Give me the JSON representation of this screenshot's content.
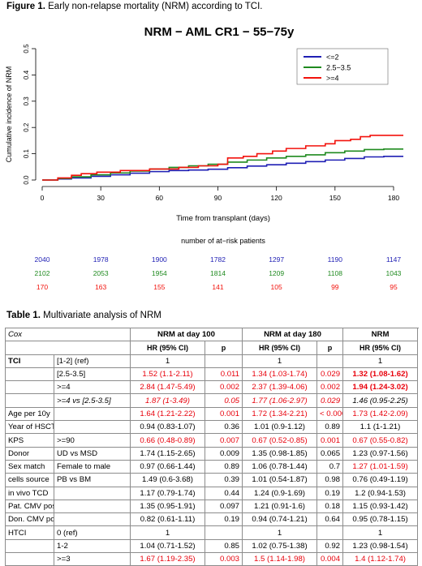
{
  "figure_caption": {
    "label": "Figure 1.",
    "text": " Early non-relapse mortality (NRM) according to TCI."
  },
  "table_caption": {
    "label": "Table 1.",
    "text": " Multivariate analysis of NRM"
  },
  "chart_data": {
    "type": "line",
    "title": "NRM − AML CR1 − 55−75y",
    "xlabel": "Time from transplant (days)",
    "ylabel": "Cumulative incidence of NRM",
    "xlim": [
      0,
      185
    ],
    "ylim": [
      0,
      0.5
    ],
    "x_ticks": [
      0,
      30,
      60,
      90,
      120,
      150,
      180
    ],
    "y_ticks": [
      "0.0",
      "0.1",
      "0.2",
      "0.3",
      "0.4",
      "0.5"
    ],
    "legend_position": "top-right",
    "series": [
      {
        "name": "<=2",
        "color": "#1f1fb4",
        "points": [
          [
            0,
            0
          ],
          [
            8,
            0.004
          ],
          [
            15,
            0.008
          ],
          [
            25,
            0.014
          ],
          [
            35,
            0.02
          ],
          [
            45,
            0.026
          ],
          [
            55,
            0.032
          ],
          [
            65,
            0.036
          ],
          [
            75,
            0.038
          ],
          [
            85,
            0.041
          ],
          [
            95,
            0.047
          ],
          [
            105,
            0.053
          ],
          [
            115,
            0.058
          ],
          [
            125,
            0.064
          ],
          [
            135,
            0.07
          ],
          [
            145,
            0.076
          ],
          [
            155,
            0.082
          ],
          [
            165,
            0.088
          ],
          [
            175,
            0.09
          ],
          [
            185,
            0.09
          ]
        ]
      },
      {
        "name": "2.5−3.5",
        "color": "#1f8a1f",
        "points": [
          [
            0,
            0
          ],
          [
            8,
            0.006
          ],
          [
            15,
            0.012
          ],
          [
            25,
            0.02
          ],
          [
            35,
            0.027
          ],
          [
            45,
            0.034
          ],
          [
            55,
            0.042
          ],
          [
            65,
            0.048
          ],
          [
            75,
            0.054
          ],
          [
            85,
            0.06
          ],
          [
            95,
            0.068
          ],
          [
            105,
            0.076
          ],
          [
            115,
            0.084
          ],
          [
            125,
            0.09
          ],
          [
            135,
            0.096
          ],
          [
            145,
            0.104
          ],
          [
            155,
            0.11
          ],
          [
            165,
            0.116
          ],
          [
            175,
            0.118
          ],
          [
            185,
            0.118
          ]
        ]
      },
      {
        "name": ">=4",
        "color": "#f2120c",
        "points": [
          [
            0,
            0
          ],
          [
            8,
            0.008
          ],
          [
            15,
            0.018
          ],
          [
            20,
            0.024
          ],
          [
            28,
            0.03
          ],
          [
            35,
            0.03
          ],
          [
            40,
            0.036
          ],
          [
            50,
            0.036
          ],
          [
            55,
            0.042
          ],
          [
            65,
            0.042
          ],
          [
            70,
            0.048
          ],
          [
            78,
            0.048
          ],
          [
            80,
            0.054
          ],
          [
            90,
            0.06
          ],
          [
            95,
            0.084
          ],
          [
            103,
            0.09
          ],
          [
            110,
            0.1
          ],
          [
            118,
            0.11
          ],
          [
            125,
            0.12
          ],
          [
            135,
            0.13
          ],
          [
            145,
            0.138
          ],
          [
            150,
            0.15
          ],
          [
            158,
            0.155
          ],
          [
            163,
            0.165
          ],
          [
            168,
            0.17
          ],
          [
            185,
            0.17
          ]
        ]
      }
    ],
    "at_risk": {
      "title": "number of at−risk patients",
      "days": [
        0,
        30,
        60,
        90,
        120,
        150,
        180
      ],
      "rows": [
        {
          "color": "#1f1fb4",
          "values": [
            "2040",
            "1978",
            "1900",
            "1782",
            "1297",
            "1190",
            "1147"
          ]
        },
        {
          "color": "#1f8a1f",
          "values": [
            "2102",
            "2053",
            "1954",
            "1814",
            "1209",
            "1108",
            "1043"
          ]
        },
        {
          "color": "#f2120c",
          "values": [
            "170",
            "163",
            "155",
            "141",
            "105",
            "99",
            "95"
          ]
        }
      ]
    }
  },
  "table": {
    "header": {
      "col0": "Cox",
      "g1": "NRM at day 100",
      "g2": "NRM at day 180",
      "g3": "NRM",
      "hr": "HR (95% CI)",
      "p": "p"
    },
    "rows": [
      {
        "v": "TCI",
        "l": "[1-2] (ref)",
        "c": [
          "1",
          "",
          "1",
          "",
          "1",
          ""
        ],
        "vb": true
      },
      {
        "v": "",
        "l": "[2.5-3.5]",
        "c": [
          "1.52 (1.1-2.11)",
          "0.011",
          "1.34 (1.03-1.74)",
          "0.029",
          "1.32 (1.08-1.62)",
          "0.007"
        ],
        "red": [
          1,
          1,
          1,
          1,
          1,
          1
        ],
        "bold": [
          0,
          0,
          0,
          0,
          1,
          1
        ]
      },
      {
        "v": "",
        "l": ">=4",
        "c": [
          "2.84 (1.47-5.49)",
          "0.002",
          "2.37 (1.39-4.06)",
          "0.002",
          "1.94 (1.24-3.02)",
          "0.004"
        ],
        "red": [
          1,
          1,
          1,
          1,
          1,
          1
        ],
        "bold": [
          0,
          0,
          0,
          0,
          1,
          1
        ]
      },
      {
        "v": "",
        "l": ">=4 vs [2.5-3.5]",
        "c": [
          "1.87 (1-3.49)",
          "0.05",
          "1.77 (1.06-2.97)",
          "0.029",
          "1.46 (0.95-2.25)",
          "0.083"
        ],
        "red": [
          1,
          1,
          1,
          1,
          0,
          0
        ],
        "ital": true
      },
      {
        "v": "Age per 10y",
        "l": "",
        "c": [
          "1.64 (1.21-2.22)",
          "0.001",
          "1.72 (1.34-2.21)",
          "< 0.0001",
          "1.73 (1.42-2.09)",
          "< 0.0001"
        ],
        "red": [
          1,
          1,
          1,
          1,
          1,
          1
        ]
      },
      {
        "v": "Year of HSCT",
        "l": "",
        "c": [
          "0.94 (0.83-1.07)",
          "0.36",
          "1.01 (0.9-1.12)",
          "0.89",
          "1.1 (1-1.21)",
          "0.042"
        ]
      },
      {
        "v": "KPS",
        "l": ">=90",
        "c": [
          "0.66 (0.48-0.89)",
          "0.007",
          "0.67 (0.52-0.85)",
          "0.001",
          "0.67 (0.55-0.82)",
          "< 0.0001"
        ],
        "red": [
          1,
          1,
          1,
          1,
          1,
          1
        ]
      },
      {
        "v": "Donor",
        "l": "UD vs MSD",
        "c": [
          "1.74 (1.15-2.65)",
          "0.009",
          "1.35 (0.98-1.85)",
          "0.065",
          "1.23 (0.97-1.56)",
          "0.091"
        ]
      },
      {
        "v": "Sex match",
        "l": "Female to male",
        "c": [
          "0.97 (0.66-1.44)",
          "0.89",
          "1.06 (0.78-1.44)",
          "0.7",
          "1.27 (1.01-1.59)",
          "0.037"
        ],
        "red": [
          0,
          0,
          0,
          0,
          1,
          1
        ]
      },
      {
        "v": "cells source",
        "l": "PB vs BM",
        "c": [
          "1.49 (0.6-3.68)",
          "0.39",
          "1.01 (0.54-1.87)",
          "0.98",
          "0.76 (0.49-1.19)",
          "0.23"
        ]
      },
      {
        "v": "in vivo TCD",
        "l": "",
        "c": [
          "1.17 (0.79-1.74)",
          "0.44",
          "1.24 (0.9-1.69)",
          "0.19",
          "1.2 (0.94-1.53)",
          "0.14"
        ]
      },
      {
        "v": "Pat. CMV pos",
        "l": "",
        "c": [
          "1.35 (0.95-1.91)",
          "0.097",
          "1.21 (0.91-1.6)",
          "0.18",
          "1.15 (0.93-1.42)",
          "0.2"
        ]
      },
      {
        "v": "Don. CMV pos",
        "l": "",
        "c": [
          "0.82 (0.61-1.11)",
          "0.19",
          "0.94 (0.74-1.21)",
          "0.64",
          "0.95 (0.78-1.15)",
          "0.59"
        ]
      },
      {
        "v": "HTCI",
        "l": "0 (ref)",
        "c": [
          "1",
          "",
          "1",
          "",
          "1",
          ""
        ]
      },
      {
        "v": "",
        "l": "1-2",
        "c": [
          "1.04 (0.71-1.52)",
          "0.85",
          "1.02 (0.75-1.38)",
          "0.92",
          "1.23 (0.98-1.54)",
          "0.078"
        ]
      },
      {
        "v": "",
        "l": ">=3",
        "c": [
          "1.67 (1.19-2.35)",
          "0.003",
          "1.5 (1.14-1.98)",
          "0.004",
          "1.4 (1.12-1.74)",
          "0.003"
        ],
        "red": [
          1,
          1,
          1,
          1,
          1,
          1
        ]
      }
    ]
  }
}
